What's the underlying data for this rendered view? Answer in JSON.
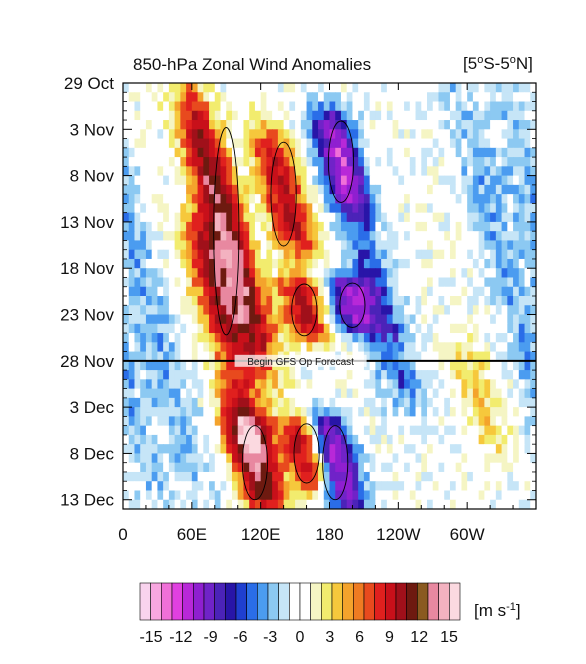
{
  "chart_data": {
    "type": "heatmap",
    "title": "850-hPa Zonal Wind Anomalies",
    "region_label": "[5°S-5°N]",
    "x_tick_labels": [
      "0",
      "60E",
      "120E",
      "180",
      "120W",
      "60W"
    ],
    "x_tick_longitudes": [
      0,
      60,
      120,
      180,
      240,
      300
    ],
    "x_range_deg_east": [
      0,
      360
    ],
    "y_tick_labels": [
      "29 Oct",
      "3 Nov",
      "8 Nov",
      "13 Nov",
      "18 Nov",
      "23 Nov",
      "28 Nov",
      "3 Dec",
      "8 Dec",
      "13 Dec"
    ],
    "y_tick_days_after_29oct": [
      0,
      5,
      10,
      15,
      20,
      25,
      30,
      35,
      40,
      45
    ],
    "y_range_days_after_29oct": [
      0,
      46
    ],
    "forecast_start_day": 30,
    "forecast_label": "Begin GFS Op Forecast",
    "units_label": "[m s-1]",
    "colorbar_tick_labels": [
      "-15",
      "-12",
      "-9",
      "-6",
      "-3",
      "0",
      "3",
      "6",
      "9",
      "12",
      "15"
    ],
    "contour_levels": [
      -15,
      -13.5,
      -12,
      -10.5,
      -9,
      -7.5,
      -6,
      -5,
      -4,
      -3,
      -2,
      -1,
      1,
      2,
      3,
      4,
      5,
      6,
      7.5,
      9,
      10.5,
      12,
      13.5,
      15
    ],
    "colorbar_colors": [
      "#f9d3ee",
      "#f8a7e0",
      "#f070d8",
      "#e040e0",
      "#b828d8",
      "#8f1fd0",
      "#7023c8",
      "#4b23b8",
      "#2815a8",
      "#1f3fd0",
      "#2a6de8",
      "#4b9cf0",
      "#8cc9f2",
      "#c6e5f7",
      "#ffffff",
      "#ffffff",
      "#f5f5c4",
      "#f2ec6e",
      "#f6c83c",
      "#f4a32c",
      "#ef7b22",
      "#e84a1e",
      "#e0201e",
      "#c8101a",
      "#a0101a",
      "#6e1a10",
      "#8a5a20",
      "#e888a0",
      "#f3b2c0",
      "#fbd9e0"
    ],
    "anomaly_features_ms": [
      {
        "lon": 90,
        "day_start": 2,
        "day_end": 30,
        "peak": 12
      },
      {
        "lon": 80,
        "day_start": 15,
        "day_end": 30,
        "peak": 8
      },
      {
        "lon": 105,
        "day_start": 31,
        "day_end": 40,
        "peak": 7
      },
      {
        "lon": 115,
        "day_start": 36,
        "day_end": 46,
        "peak": 12
      },
      {
        "lon": 140,
        "day_start": 5,
        "day_end": 19,
        "peak": 9
      },
      {
        "lon": 158,
        "day_start": 21,
        "day_end": 28,
        "peak": 9
      },
      {
        "lon": 160,
        "day_start": 36,
        "day_end": 44,
        "peak": 10
      },
      {
        "lon": 190,
        "day_start": 3,
        "day_end": 14,
        "peak": -11
      },
      {
        "lon": 200,
        "day_start": 21,
        "day_end": 27,
        "peak": -10
      },
      {
        "lon": 185,
        "day_start": 36,
        "day_end": 46,
        "peak": -12
      },
      {
        "lon": 225,
        "day_start": 14,
        "day_end": 35,
        "peak": -5
      },
      {
        "lon": 20,
        "day_start": 0,
        "day_end": 46,
        "peak": -3
      },
      {
        "lon": 340,
        "day_start": 0,
        "day_end": 46,
        "peak": -3
      },
      {
        "lon": 310,
        "day_start": 28,
        "day_end": 40,
        "peak": 3
      }
    ]
  }
}
